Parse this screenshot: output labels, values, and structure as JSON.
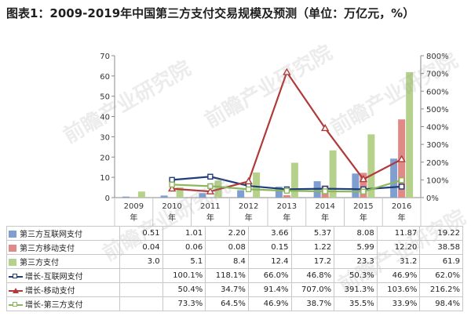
{
  "title": "图表1：2009-2019年中国第三方支付交易规模及预测（单位：万亿元，%）",
  "watermark": "前瞻产业研究院",
  "chart_data": {
    "type": "bar",
    "categories": [
      "2009年",
      "2010年",
      "2011年",
      "2012年",
      "2013年",
      "2014年",
      "2015年",
      "2016年"
    ],
    "left_axis": {
      "ylim": [
        0,
        70
      ],
      "ticks": [
        "0",
        "10",
        "20",
        "30",
        "40",
        "50",
        "60",
        "70"
      ]
    },
    "right_axis": {
      "ylim": [
        0,
        800
      ],
      "ticks": [
        "0%",
        "100%",
        "200%",
        "300%",
        "400%",
        "500%",
        "600%",
        "700%",
        "800%"
      ]
    },
    "bar_series": [
      {
        "name": "第三方互联网支付",
        "color": "#7f9fd0",
        "values": [
          0.51,
          1.01,
          2.2,
          3.66,
          5.37,
          8.08,
          11.87,
          19.22
        ],
        "labels": [
          "0.51",
          "1.01",
          "2.20",
          "3.66",
          "5.37",
          "8.08",
          "11.87",
          "19.22"
        ]
      },
      {
        "name": "第三方移动支付",
        "color": "#e08a88",
        "values": [
          0.04,
          0.06,
          0.08,
          0.15,
          1.22,
          5.99,
          12.2,
          38.58
        ],
        "labels": [
          "0.04",
          "0.06",
          "0.08",
          "0.15",
          "1.22",
          "5.99",
          "12.20",
          "38.58"
        ]
      },
      {
        "name": "第三方支付",
        "color": "#b5d18c",
        "values": [
          3.0,
          5.1,
          8.4,
          12.4,
          17.2,
          23.3,
          31.2,
          61.9
        ],
        "labels": [
          "3.0",
          "5.1",
          "8.4",
          "12.4",
          "17.2",
          "23.3",
          "31.2",
          "61.9"
        ]
      }
    ],
    "line_series": [
      {
        "name": "增长-互联网支付",
        "color": "#1f3d78",
        "marker": "square",
        "values": [
          null,
          100.1,
          118.1,
          66.0,
          46.8,
          50.3,
          46.9,
          62.0
        ],
        "labels": [
          "",
          "100.1%",
          "118.1%",
          "66.0%",
          "46.8%",
          "50.3%",
          "46.9%",
          "62.0%"
        ]
      },
      {
        "name": "增长-移动支付",
        "color": "#b03a3a",
        "marker": "triangle",
        "values": [
          null,
          50.4,
          34.7,
          91.4,
          707.0,
          391.3,
          103.6,
          216.2
        ],
        "labels": [
          "",
          "50.4%",
          "34.7%",
          "91.4%",
          "707.0%",
          "391.3%",
          "103.6%",
          "216.2%"
        ]
      },
      {
        "name": "增长-第三方支付",
        "color": "#8cb85a",
        "marker": "square",
        "values": [
          null,
          73.3,
          64.5,
          46.9,
          38.7,
          35.5,
          33.9,
          98.4
        ],
        "labels": [
          "",
          "73.3%",
          "64.5%",
          "46.9%",
          "38.7%",
          "35.5%",
          "33.9%",
          "98.4%"
        ]
      }
    ]
  }
}
